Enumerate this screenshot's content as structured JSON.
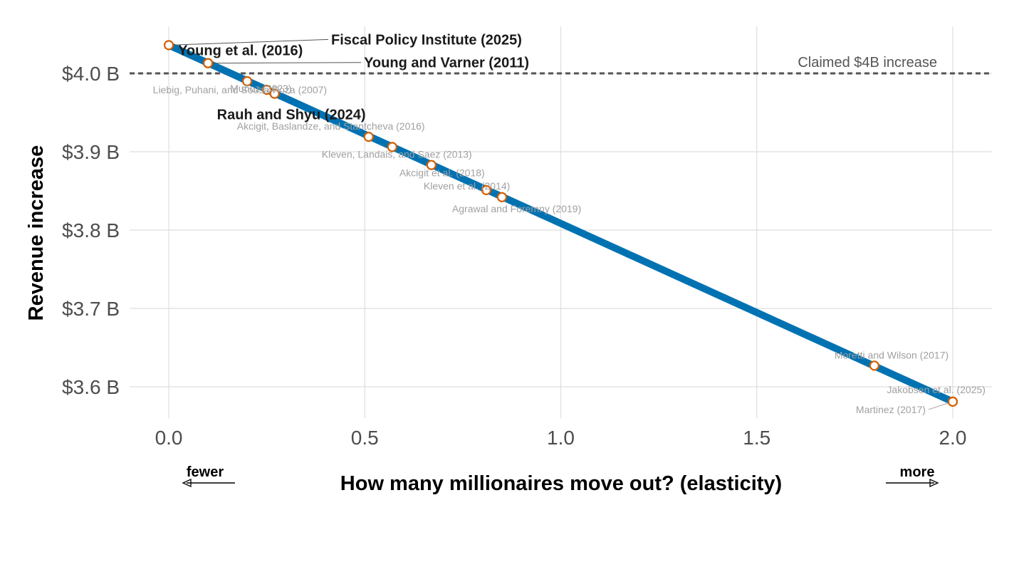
{
  "chart_data": {
    "type": "line",
    "xlabel": "How many millionaires move out? (elasticity)",
    "ylabel": "Revenue increase",
    "xlim": [
      -0.1,
      2.1
    ],
    "ylim": [
      3.56,
      4.06
    ],
    "x_ticks": [
      0.0,
      0.5,
      1.0,
      1.5,
      2.0
    ],
    "x_tick_labels": [
      "0.0",
      "0.5",
      "1.0",
      "1.5",
      "2.0"
    ],
    "y_ticks": [
      3.6,
      3.7,
      3.8,
      3.9,
      4.0
    ],
    "y_tick_labels": [
      "$3.6 B",
      "$3.7 B",
      "$3.8 B",
      "$3.9 B",
      "$4.0 B"
    ],
    "grid": true,
    "line": {
      "x": [
        0.0,
        2.0
      ],
      "y": [
        4.036,
        3.581
      ],
      "color": "#0072B2"
    },
    "reference_line": {
      "y": 4.0,
      "label": "Claimed $4B increase",
      "style": "dashed"
    },
    "direction_labels": {
      "left": "fewer",
      "right": "more"
    },
    "points": [
      {
        "label": "Fiscal Policy Institute (2025)",
        "x": 0.0,
        "y": 4.036,
        "emphasis": true
      },
      {
        "label": "Young et al. (2016)",
        "x": 0.1,
        "y": 4.013,
        "emphasis": true
      },
      {
        "label": "Young and Varner (2011)",
        "x": 0.1,
        "y": 4.013,
        "emphasis": true
      },
      {
        "label": "Muñoz (2023)",
        "x": 0.2,
        "y": 3.99,
        "emphasis": false
      },
      {
        "label": "Liebig, Puhani, and Sousa-Poza (2007)",
        "x": 0.25,
        "y": 3.979,
        "emphasis": false
      },
      {
        "label": "Rauh and Shyu (2024)",
        "x": 0.27,
        "y": 3.974,
        "emphasis": true
      },
      {
        "label": "Akcigit, Baslandze, and Stantcheva (2016)",
        "x": 0.51,
        "y": 3.919,
        "emphasis": false
      },
      {
        "label": "Kleven, Landais, and Saez (2013)",
        "x": 0.57,
        "y": 3.906,
        "emphasis": false
      },
      {
        "label": "Akcigit et al. (2018)",
        "x": 0.67,
        "y": 3.883,
        "emphasis": false
      },
      {
        "label": "Kleven et al. (2014)",
        "x": 0.81,
        "y": 3.851,
        "emphasis": false
      },
      {
        "label": "Agrawal and Foremny (2019)",
        "x": 0.85,
        "y": 3.842,
        "emphasis": false
      },
      {
        "label": "Moretti and Wilson (2017)",
        "x": 1.8,
        "y": 3.627,
        "emphasis": false
      },
      {
        "label": "Jakobsen et al. (2025)",
        "x": 2.0,
        "y": 3.581,
        "emphasis": false
      },
      {
        "label": "Martinez (2017)",
        "x": 2.0,
        "y": 3.581,
        "emphasis": false
      }
    ],
    "colors": {
      "line": "#0072B2",
      "point_stroke": "#D55E00",
      "point_fill": "#ffffff",
      "reference": "#555555"
    }
  }
}
